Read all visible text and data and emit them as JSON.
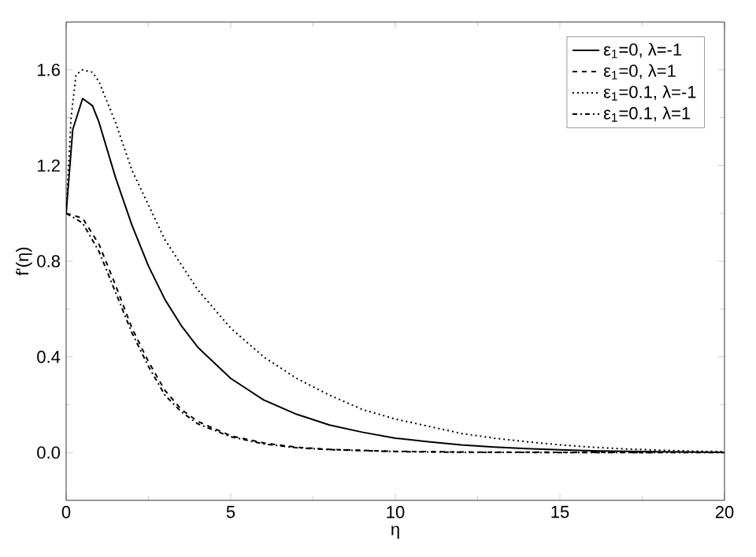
{
  "chart_data": {
    "type": "line",
    "xlabel": "η",
    "ylabel": "f'(η)",
    "xlim": [
      0,
      20
    ],
    "ylim": [
      -0.2,
      1.8
    ],
    "xticks": [
      0,
      5,
      10,
      15,
      20
    ],
    "yticks": [
      {
        "value": 0,
        "label": "0.0"
      },
      {
        "value": 0.4,
        "label": "0.4"
      },
      {
        "value": 0.8,
        "label": "0.8"
      },
      {
        "value": 1.2,
        "label": "1.2"
      },
      {
        "value": 1.6,
        "label": "1.6"
      }
    ],
    "legend": "top right",
    "grid": false,
    "marker": "none",
    "series": [
      {
        "name": "ε$_{1}$=0, λ=-1",
        "color": "#000000",
        "line_style": "solid",
        "x": [
          0,
          0.2,
          0.5,
          0.8,
          1,
          1.5,
          2,
          2.5,
          3,
          3.5,
          4,
          5,
          6,
          7,
          8,
          9,
          10,
          11,
          12,
          13,
          14,
          15,
          16,
          18,
          20
        ],
        "values": [
          1.0,
          1.35,
          1.48,
          1.45,
          1.38,
          1.15,
          0.95,
          0.78,
          0.64,
          0.53,
          0.44,
          0.31,
          0.22,
          0.16,
          0.115,
          0.085,
          0.06,
          0.045,
          0.032,
          0.023,
          0.016,
          0.011,
          0.007,
          0.003,
          0.001
        ]
      },
      {
        "name": "ε$_{1}$=0, λ=1",
        "color": "#000000",
        "line_style": "dashed",
        "x": [
          0,
          0.5,
          1,
          1.5,
          2,
          2.5,
          3,
          3.5,
          4,
          5,
          6,
          7,
          8,
          10,
          12,
          15,
          18
        ],
        "values": [
          1.0,
          0.98,
          0.87,
          0.7,
          0.52,
          0.38,
          0.26,
          0.18,
          0.13,
          0.07,
          0.04,
          0.022,
          0.013,
          0.005,
          0.002,
          0.001,
          0
        ]
      },
      {
        "name": "ε$_{1}$=0.1, λ=-1",
        "color": "#000000",
        "line_style": "dotted",
        "x": [
          0,
          0.15,
          0.3,
          0.5,
          0.8,
          1,
          1.5,
          2,
          3,
          4,
          5,
          6,
          7,
          8,
          9,
          10,
          11,
          12,
          13,
          14,
          15,
          16,
          17,
          18,
          19,
          20
        ],
        "values": [
          1.0,
          1.4,
          1.58,
          1.6,
          1.59,
          1.55,
          1.38,
          1.18,
          0.89,
          0.68,
          0.52,
          0.4,
          0.31,
          0.24,
          0.18,
          0.14,
          0.11,
          0.08,
          0.06,
          0.045,
          0.032,
          0.022,
          0.015,
          0.01,
          0.006,
          0.004
        ]
      },
      {
        "name": "ε$_{1}$=0.1, λ=1",
        "color": "#000000",
        "line_style": "dashdot",
        "x": [
          0,
          0.5,
          1,
          1.5,
          2,
          2.5,
          3,
          3.5,
          4,
          5,
          6,
          7,
          8,
          10,
          12,
          15,
          20
        ],
        "values": [
          1.0,
          0.96,
          0.84,
          0.67,
          0.5,
          0.36,
          0.24,
          0.17,
          0.12,
          0.066,
          0.036,
          0.02,
          0.012,
          0.004,
          0.001,
          0,
          0
        ]
      }
    ]
  }
}
